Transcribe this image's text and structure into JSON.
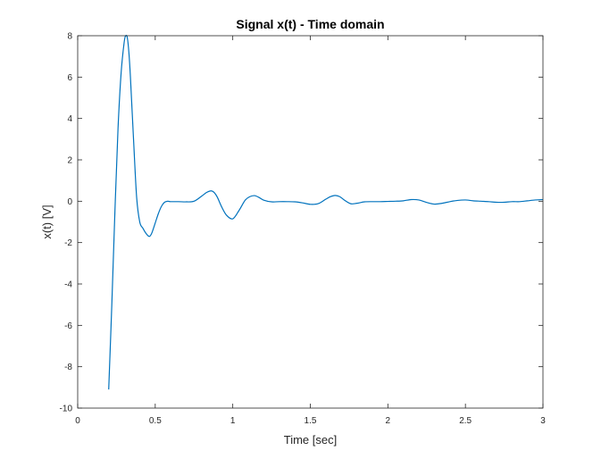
{
  "chart_data": {
    "type": "line",
    "title": "Signal x(t) - Time domain",
    "xlabel": "Time [sec]",
    "ylabel": "x(t) [V]",
    "xlim": [
      0,
      3
    ],
    "ylim": [
      -10,
      8
    ],
    "xticks": [
      0,
      0.5,
      1,
      1.5,
      2,
      2.5,
      3
    ],
    "xtick_labels": [
      "0",
      "0.5",
      "1",
      "1.5",
      "2",
      "2.5",
      "3"
    ],
    "yticks": [
      -10,
      -8,
      -6,
      -4,
      -2,
      0,
      2,
      4,
      6,
      8
    ],
    "ytick_labels": [
      "-10",
      "-8",
      "-6",
      "-4",
      "-2",
      "0",
      "2",
      "4",
      "6",
      "8"
    ],
    "grid": false,
    "series": [
      {
        "color": "#0072BD",
        "x": [
          0.2,
          0.22,
          0.24,
          0.26,
          0.28,
          0.3,
          0.31,
          0.32,
          0.33,
          0.34,
          0.36,
          0.38,
          0.4,
          0.42,
          0.44,
          0.46,
          0.47,
          0.48,
          0.5,
          0.52,
          0.54,
          0.56,
          0.58,
          0.6,
          0.65,
          0.7,
          0.75,
          0.8,
          0.83,
          0.86,
          0.88,
          0.9,
          0.93,
          0.96,
          1.0,
          1.04,
          1.08,
          1.11,
          1.14,
          1.17,
          1.2,
          1.25,
          1.3,
          1.35,
          1.4,
          1.45,
          1.5,
          1.55,
          1.6,
          1.63,
          1.66,
          1.69,
          1.72,
          1.76,
          1.8,
          1.85,
          1.9,
          1.95,
          2.0,
          2.05,
          2.1,
          2.15,
          2.2,
          2.25,
          2.3,
          2.35,
          2.4,
          2.45,
          2.5,
          2.55,
          2.6,
          2.65,
          2.7,
          2.75,
          2.8,
          2.85,
          2.9,
          2.95,
          3.0
        ],
        "y": [
          -9.1,
          -5.0,
          -0.5,
          3.5,
          6.2,
          7.7,
          8.0,
          7.9,
          7.2,
          6.0,
          3.0,
          0.2,
          -1.0,
          -1.3,
          -1.55,
          -1.7,
          -1.65,
          -1.5,
          -1.05,
          -0.6,
          -0.25,
          -0.05,
          0.0,
          -0.02,
          -0.02,
          -0.03,
          0.0,
          0.25,
          0.42,
          0.5,
          0.42,
          0.2,
          -0.3,
          -0.68,
          -0.85,
          -0.45,
          0.05,
          0.22,
          0.27,
          0.18,
          0.05,
          -0.03,
          -0.02,
          -0.02,
          -0.03,
          -0.08,
          -0.15,
          -0.12,
          0.1,
          0.22,
          0.28,
          0.22,
          0.05,
          -0.12,
          -0.1,
          -0.03,
          -0.02,
          -0.02,
          -0.01,
          0.0,
          0.02,
          0.08,
          0.06,
          -0.06,
          -0.14,
          -0.1,
          -0.02,
          0.04,
          0.06,
          0.02,
          0.0,
          -0.02,
          -0.05,
          -0.05,
          -0.02,
          -0.02,
          0.02,
          0.06,
          0.08
        ]
      }
    ]
  }
}
